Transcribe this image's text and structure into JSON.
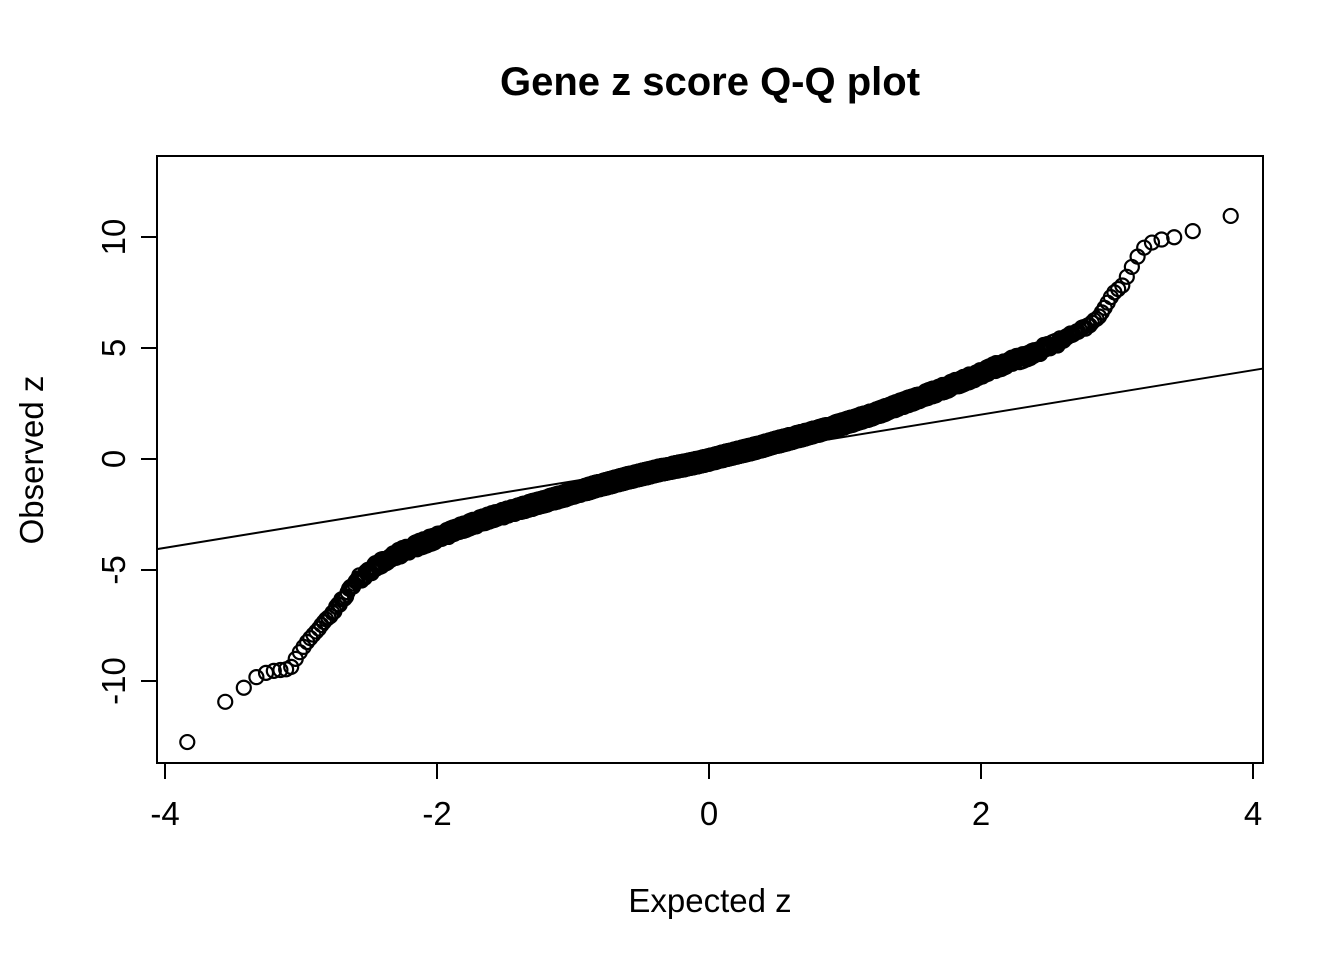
{
  "page": {
    "background": "#ffffff",
    "foreground": "#000000"
  },
  "chart_data": {
    "type": "scatter",
    "variant": "qq-plot",
    "title": "Gene z score Q-Q plot",
    "xlabel": "Expected z",
    "ylabel": "Observed z",
    "xlim": [
      -4.06,
      4.07
    ],
    "ylim": [
      -13.7,
      13.65
    ],
    "xticks": [
      -4,
      -2,
      0,
      2,
      4
    ],
    "yticks": [
      -10,
      -5,
      0,
      5,
      10
    ],
    "grid": false,
    "legend": "none",
    "point_style": {
      "marker": "open-circle",
      "color": "#000000"
    },
    "reference_line": {
      "slope": 1,
      "intercept": 0,
      "color": "#000000"
    },
    "n_points_approx": 8000,
    "qq_curve_points": [
      [
        -3.83,
        -12.75
      ],
      [
        -3.77,
        -12.7
      ],
      [
        -3.6,
        -11.1
      ],
      [
        -3.5,
        -10.72
      ],
      [
        -3.42,
        -10.3
      ],
      [
        -3.36,
        -9.95
      ],
      [
        -3.3,
        -9.72
      ],
      [
        -3.22,
        -9.56
      ],
      [
        -3.08,
        -9.45
      ],
      [
        -3.02,
        -8.8
      ],
      [
        -2.95,
        -8.2
      ],
      [
        -2.85,
        -7.5
      ],
      [
        -2.75,
        -6.8
      ],
      [
        -2.67,
        -6.1
      ],
      [
        -2.58,
        -5.45
      ],
      [
        -2.47,
        -4.92
      ],
      [
        -2.35,
        -4.47
      ],
      [
        -2.2,
        -4.02
      ],
      [
        -2.05,
        -3.67
      ],
      [
        -1.85,
        -3.17
      ],
      [
        -1.6,
        -2.62
      ],
      [
        -1.35,
        -2.16
      ],
      [
        -1.1,
        -1.72
      ],
      [
        -0.85,
        -1.27
      ],
      [
        -0.6,
        -0.86
      ],
      [
        -0.35,
        -0.49
      ],
      [
        -0.15,
        -0.25
      ],
      [
        0.0,
        -0.04
      ],
      [
        0.15,
        0.2
      ],
      [
        0.35,
        0.5
      ],
      [
        0.5,
        0.76
      ],
      [
        0.65,
        1.0
      ],
      [
        0.9,
        1.42
      ],
      [
        1.1,
        1.8
      ],
      [
        1.25,
        2.1
      ],
      [
        1.4,
        2.45
      ],
      [
        1.7,
        3.12
      ],
      [
        1.95,
        3.72
      ],
      [
        2.1,
        4.12
      ],
      [
        2.3,
        4.57
      ],
      [
        2.5,
        5.06
      ],
      [
        2.65,
        5.52
      ],
      [
        2.78,
        5.97
      ],
      [
        2.87,
        6.42
      ],
      [
        2.92,
        6.92
      ],
      [
        2.97,
        7.45
      ],
      [
        3.04,
        7.82
      ],
      [
        3.09,
        8.42
      ],
      [
        3.14,
        9.02
      ],
      [
        3.2,
        9.52
      ],
      [
        3.26,
        9.76
      ],
      [
        3.33,
        9.89
      ],
      [
        3.4,
        9.97
      ],
      [
        3.5,
        10.06
      ],
      [
        3.6,
        10.42
      ],
      [
        3.78,
        10.92
      ],
      [
        3.84,
        10.95
      ]
    ]
  }
}
